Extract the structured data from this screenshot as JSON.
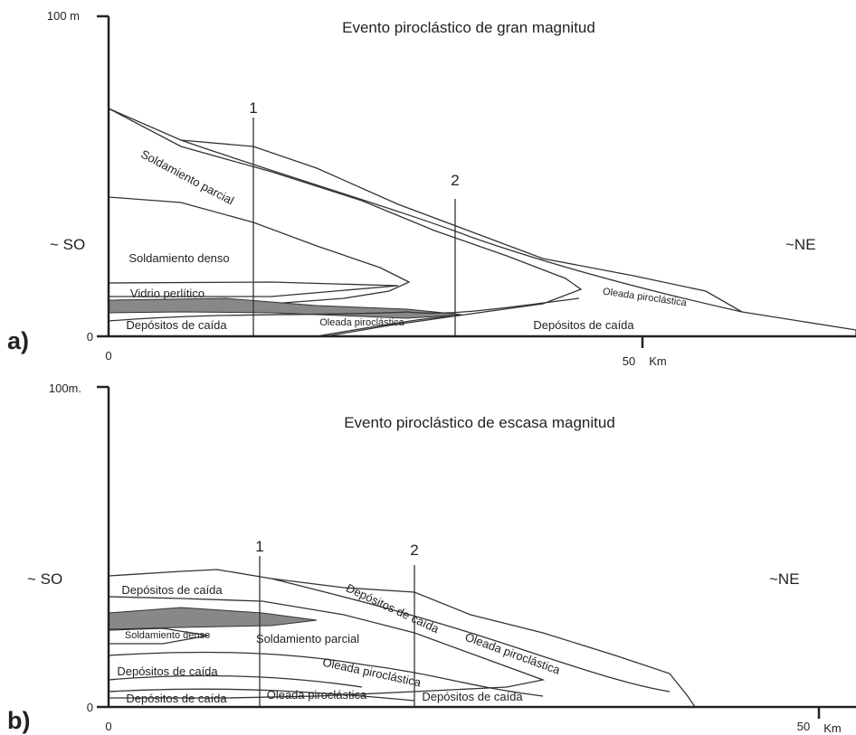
{
  "panels": [
    {
      "label": "a)",
      "title": "Evento piroclástico de gran magnitud",
      "y_top": "100 m",
      "y_bottom": "0",
      "x_start": "0",
      "x_end": "50",
      "x_unit": "Km",
      "left": "~ SO",
      "right": "~NE",
      "sections": [
        "1",
        "2"
      ],
      "layers": [
        "Soldamiento parcial",
        "Soldamiento denso",
        "Vidrio perlítico",
        "Depósitos de caída",
        "Oleada piroclástica",
        "Depósitos de caída",
        "Oleada piroclástica"
      ]
    },
    {
      "label": "b)",
      "title": "Evento piroclástico de escasa magnitud",
      "y_top": "100m.",
      "y_bottom": "0",
      "x_start": "0",
      "x_end": "50",
      "x_unit": "Km",
      "left": "~ SO",
      "right": "~NE",
      "sections": [
        "1",
        "2"
      ],
      "layers": [
        "Depósitos de caída",
        "Depósitos de caída",
        "Soldamiento denso",
        "Soldamiento parcial",
        "Oleada piroclástica",
        "Depósitos de caída",
        "Oleada piroclástica",
        "Depósitos de caída",
        "Oleada piroclástica",
        "Depósitos de caída"
      ]
    }
  ]
}
